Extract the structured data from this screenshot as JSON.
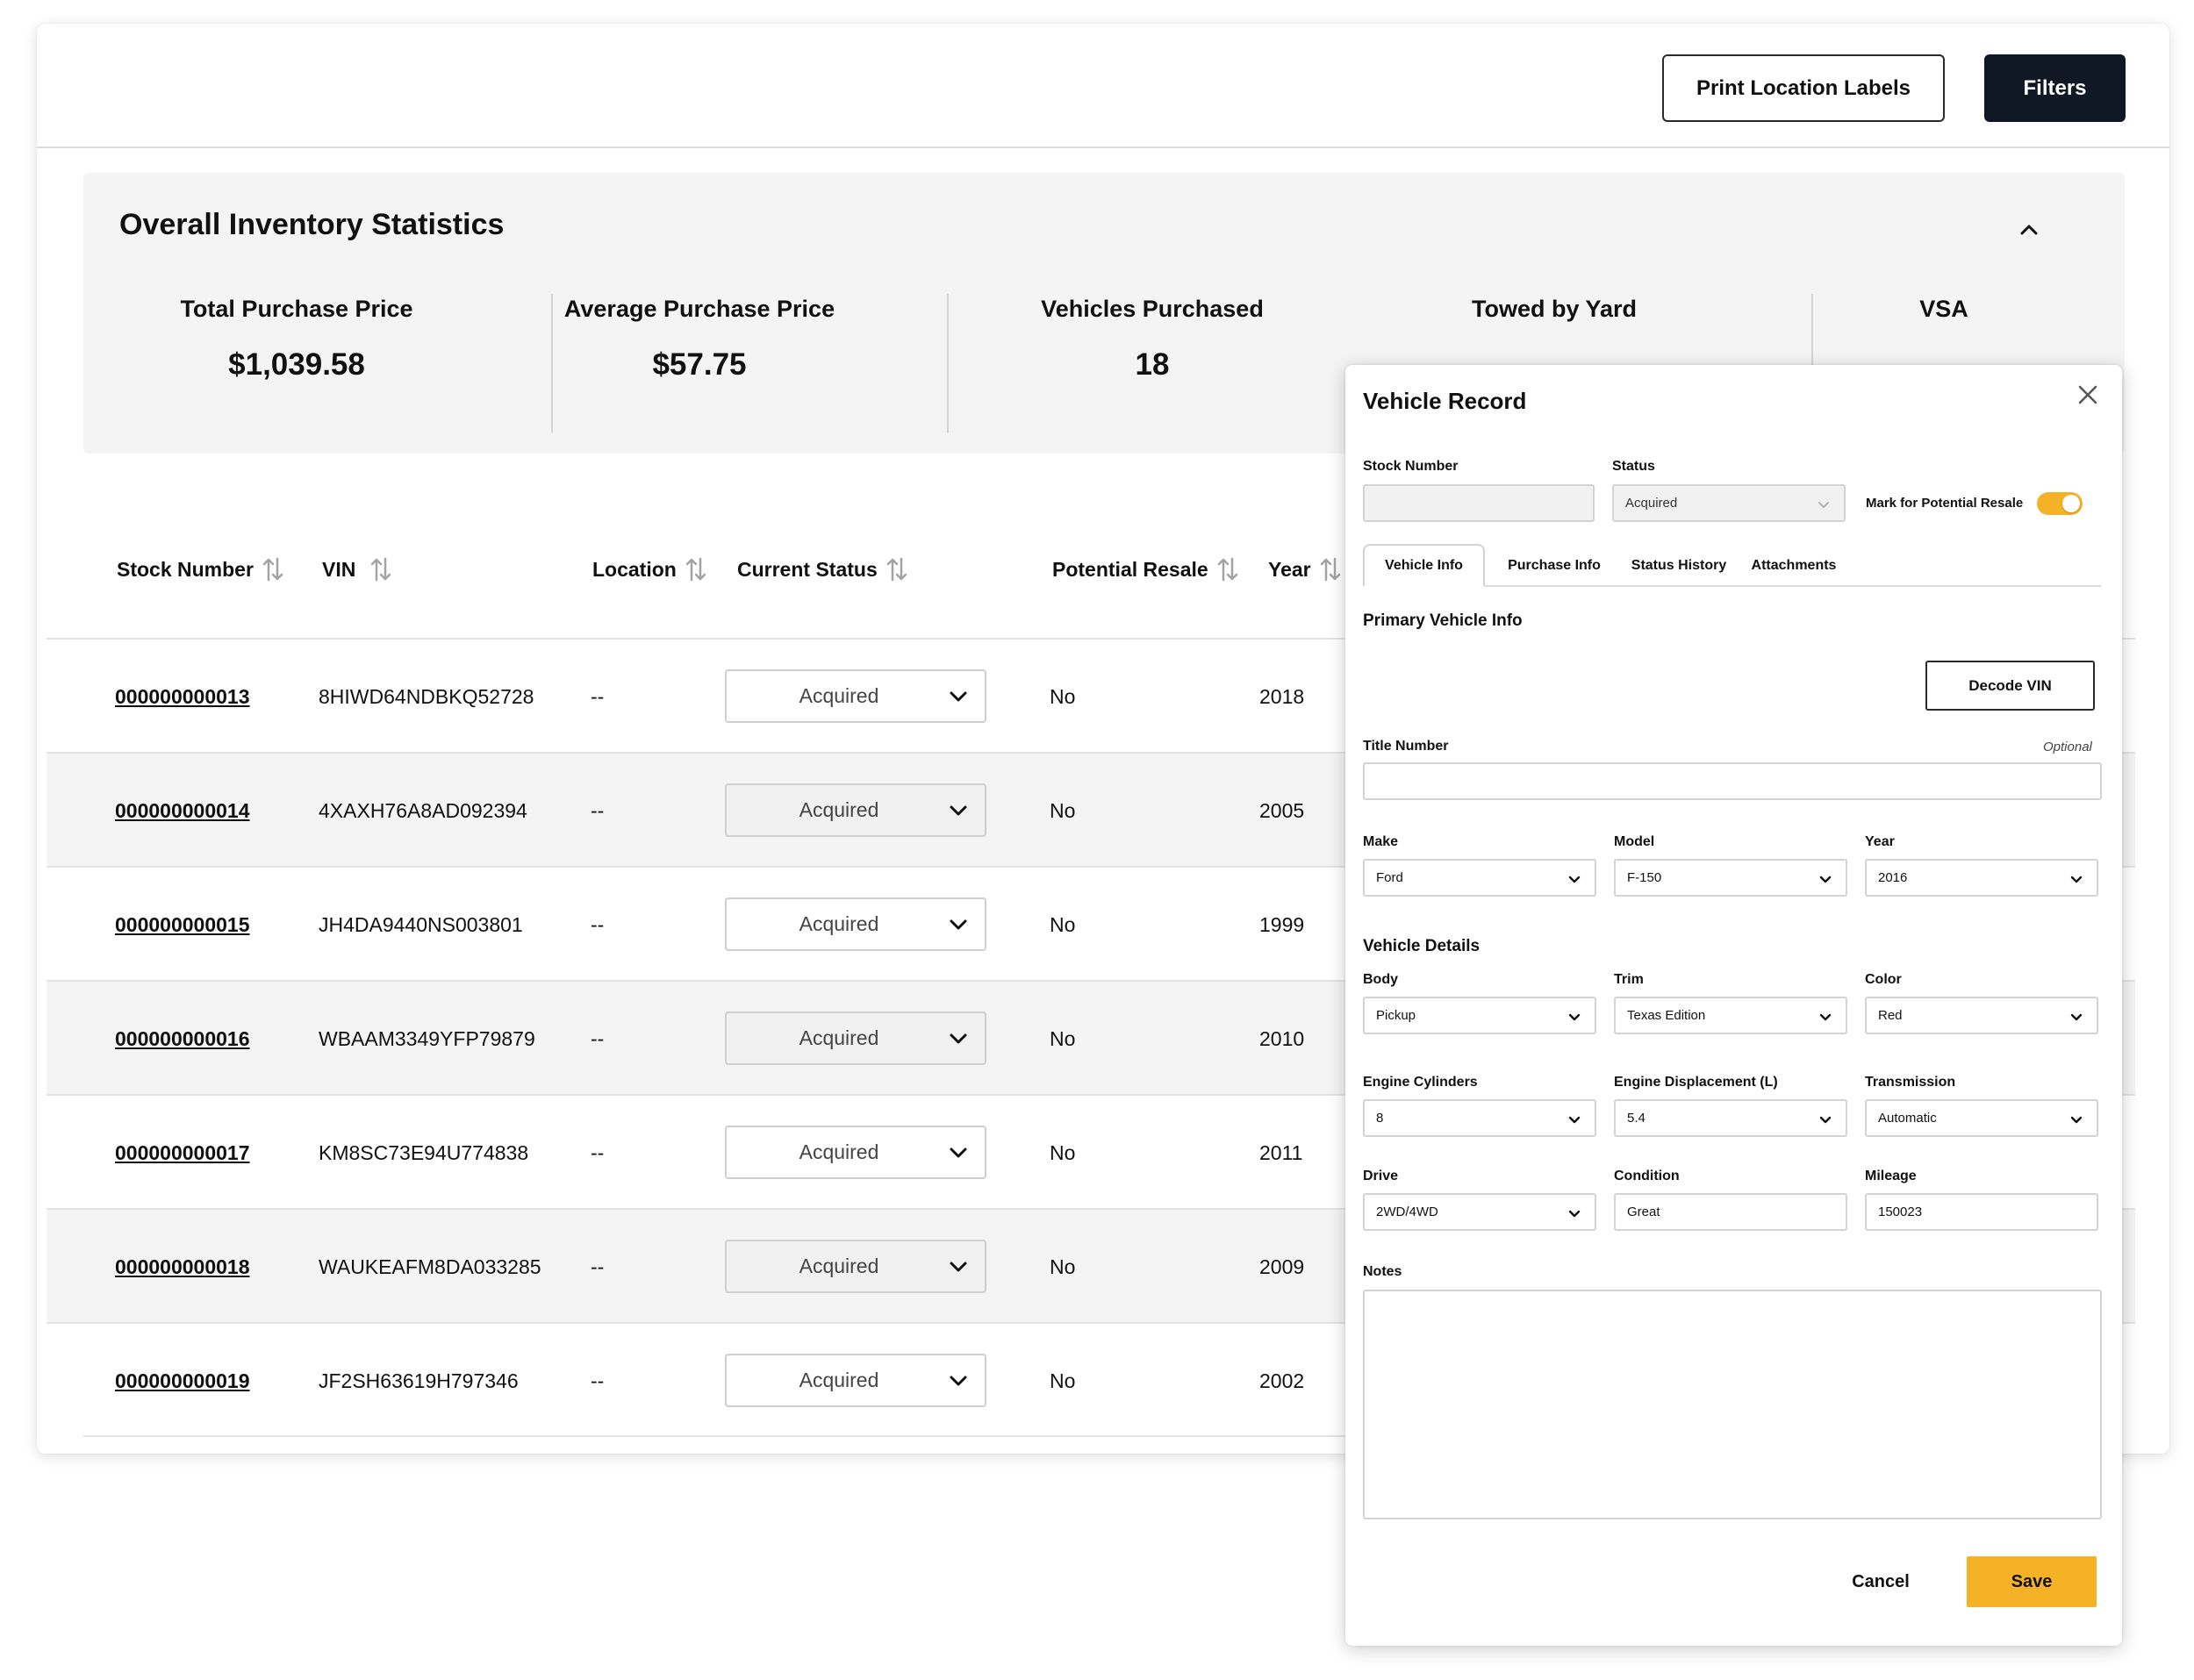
{
  "toolbar": {
    "print_labels": "Print Location Labels",
    "filters": "Filters"
  },
  "stats": {
    "title": "Overall Inventory Statistics",
    "collapse_icon": "chevron-up-icon",
    "items": [
      {
        "label": "Total Purchase Price",
        "value": "$1,039.58"
      },
      {
        "label": "Average Purchase Price",
        "value": "$57.75"
      },
      {
        "label": "Vehicles Purchased",
        "value": "18"
      },
      {
        "label": "Towed by Yard",
        "value": ""
      },
      {
        "label": "VSA",
        "value": ""
      }
    ]
  },
  "table": {
    "headers": {
      "stock": "Stock Number",
      "vin": "VIN",
      "location": "Location",
      "status": "Current Status",
      "resale": "Potential Resale",
      "year": "Year"
    },
    "sort_icon": "sort-arrows-icon",
    "rows": [
      {
        "stock": "000000000013",
        "vin": "8HIWD64NDBKQ52728",
        "location": "--",
        "status": "Acquired",
        "resale": "No",
        "year": "2018"
      },
      {
        "stock": "000000000014",
        "vin": "4XAXH76A8AD092394",
        "location": "--",
        "status": "Acquired",
        "resale": "No",
        "year": "2005"
      },
      {
        "stock": "000000000015",
        "vin": "JH4DA9440NS003801",
        "location": "--",
        "status": "Acquired",
        "resale": "No",
        "year": "1999"
      },
      {
        "stock": "000000000016",
        "vin": "WBAAM3349YFP79879",
        "location": "--",
        "status": "Acquired",
        "resale": "No",
        "year": "2010"
      },
      {
        "stock": "000000000017",
        "vin": "KM8SC73E94U774838",
        "location": "--",
        "status": "Acquired",
        "resale": "No",
        "year": "2011"
      },
      {
        "stock": "000000000018",
        "vin": "WAUKEAFM8DA033285",
        "location": "--",
        "status": "Acquired",
        "resale": "No",
        "year": "2009"
      },
      {
        "stock": "000000000019",
        "vin": "JF2SH63619H797346",
        "location": "--",
        "status": "Acquired",
        "resale": "No",
        "year": "2002"
      }
    ]
  },
  "modal": {
    "title": "Vehicle Record",
    "close_icon": "close-icon",
    "stock_number": {
      "label": "Stock Number",
      "value": ""
    },
    "status": {
      "label": "Status",
      "value": "Acquired"
    },
    "resale_toggle": {
      "label": "Mark for Potential Resale",
      "on": true
    },
    "tabs": [
      "Vehicle Info",
      "Purchase Info",
      "Status History",
      "Attachments"
    ],
    "active_tab": "Vehicle Info",
    "primary_section": "Primary Vehicle Info",
    "decode_vin": "Decode VIN",
    "title_number": {
      "label": "Title Number",
      "optional": "Optional",
      "value": ""
    },
    "make": {
      "label": "Make",
      "value": "Ford"
    },
    "model": {
      "label": "Model",
      "value": "F-150"
    },
    "year": {
      "label": "Year",
      "value": "2016"
    },
    "details_section": "Vehicle Details",
    "body": {
      "label": "Body",
      "value": "Pickup"
    },
    "trim": {
      "label": "Trim",
      "value": "Texas Edition"
    },
    "color": {
      "label": "Color",
      "value": "Red"
    },
    "engine_cylinders": {
      "label": "Engine Cylinders",
      "value": "8"
    },
    "engine_displacement": {
      "label": "Engine Displacement (L)",
      "value": "5.4"
    },
    "transmission": {
      "label": "Transmission",
      "value": "Automatic"
    },
    "drive": {
      "label": "Drive",
      "value": "2WD/4WD"
    },
    "condition": {
      "label": "Condition",
      "value": "Great"
    },
    "mileage": {
      "label": "Mileage",
      "value": "150023"
    },
    "notes": {
      "label": "Notes",
      "value": ""
    },
    "cancel": "Cancel",
    "save": "Save"
  },
  "colors": {
    "accent": "#f5b226",
    "dark_button": "#101826",
    "panel_bg": "#f4f4f4"
  }
}
